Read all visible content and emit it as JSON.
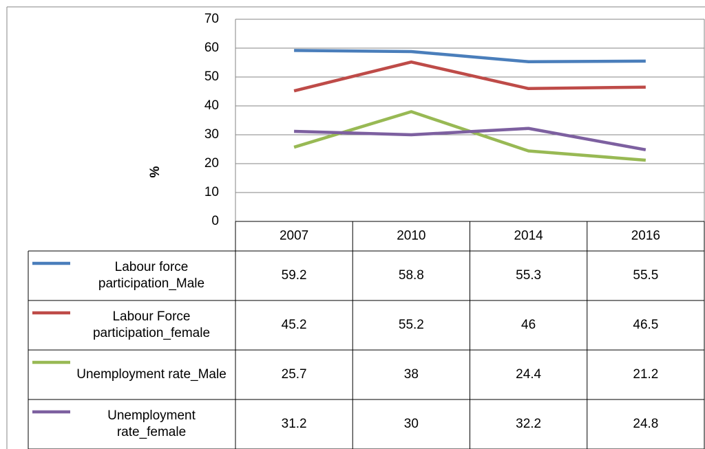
{
  "chart_data": {
    "type": "line",
    "ylabel": "%",
    "categories": [
      "2007",
      "2010",
      "2014",
      "2016"
    ],
    "series": [
      {
        "name": "Labour force participation_Male",
        "color": "#4a7ebb",
        "values": [
          59.2,
          58.8,
          55.3,
          55.5
        ]
      },
      {
        "name": "Labour Force participation_female",
        "color": "#be4b48",
        "values": [
          45.2,
          55.2,
          46,
          46.5
        ]
      },
      {
        "name": "Unemployment rate_Male",
        "color": "#98b954",
        "values": [
          25.7,
          38,
          24.4,
          21.2
        ]
      },
      {
        "name": "Unemployment rate_female",
        "color": "#7d60a0",
        "values": [
          31.2,
          30,
          32.2,
          24.8
        ]
      }
    ],
    "ylim": [
      0,
      70
    ],
    "yticks": [
      0,
      10,
      20,
      30,
      40,
      50,
      60,
      70
    ],
    "grid": true,
    "data_table": true
  }
}
